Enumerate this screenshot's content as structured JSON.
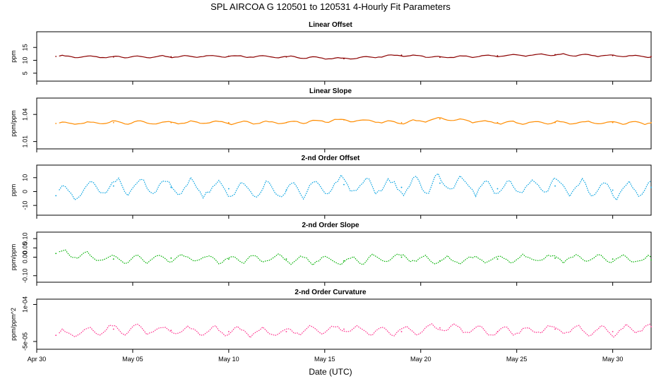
{
  "title": "SPL   AIRCOA G   120501 to 120531   4-Hourly Fit Parameters",
  "xlabel": "Date (UTC)",
  "x_ticks": [
    "Apr 30",
    "May 05",
    "May 10",
    "May 15",
    "May 20",
    "May 25",
    "May 30"
  ],
  "colors": {
    "linear_offset": "#8b0000",
    "linear_slope": "#ff8c00",
    "second_offset": "#00a0e0",
    "second_slope": "#00b000",
    "second_curvature": "#ff2a8a"
  },
  "chart_data": [
    {
      "type": "line",
      "title": "Linear Offset",
      "ylabel": "ppm",
      "y_ticks": [
        "5",
        "10",
        "15"
      ],
      "ylim": [
        3,
        20
      ],
      "xlim": [
        "2012-04-30",
        "2012-06-01"
      ],
      "series": [
        {
          "x": [
            "2012-05-01",
            "2012-05-04",
            "2012-05-07",
            "2012-05-10",
            "2012-05-13",
            "2012-05-16",
            "2012-05-19",
            "2012-05-21",
            "2012-05-24",
            "2012-05-27",
            "2012-05-30",
            "2012-06-01"
          ],
          "values": [
            11.5,
            11.3,
            11.4,
            11.6,
            11.3,
            10.6,
            12.0,
            11.2,
            11.8,
            12.2,
            11.8,
            11.5
          ]
        }
      ]
    },
    {
      "type": "line",
      "title": "Linear Slope",
      "ylabel": "ppm/ppm",
      "y_ticks": [
        "1.01",
        "1.04"
      ],
      "ylim": [
        1.005,
        1.055
      ],
      "xlim": [
        "2012-04-30",
        "2012-06-01"
      ],
      "series": [
        {
          "x": [
            "2012-05-01",
            "2012-05-04",
            "2012-05-07",
            "2012-05-10",
            "2012-05-13",
            "2012-05-16",
            "2012-05-19",
            "2012-05-21",
            "2012-05-24",
            "2012-05-27",
            "2012-05-30",
            "2012-06-01"
          ],
          "values": [
            1.03,
            1.031,
            1.031,
            1.031,
            1.031,
            1.034,
            1.031,
            1.035,
            1.031,
            1.031,
            1.031,
            1.031
          ]
        }
      ]
    },
    {
      "type": "line",
      "title": "2-nd Order Offset",
      "ylabel": "ppm",
      "y_ticks": [
        "-10",
        "0",
        "10"
      ],
      "ylim": [
        -15,
        17
      ],
      "xlim": [
        "2012-04-30",
        "2012-06-01"
      ],
      "series": [
        {
          "x": [
            "2012-05-01",
            "2012-05-04",
            "2012-05-07",
            "2012-05-10",
            "2012-05-13",
            "2012-05-16",
            "2012-05-19",
            "2012-05-21",
            "2012-05-24",
            "2012-05-27",
            "2012-05-30",
            "2012-06-01"
          ],
          "values": [
            -3,
            4,
            3,
            2,
            1,
            5,
            3,
            6,
            2,
            4,
            1,
            3
          ]
        }
      ]
    },
    {
      "type": "line",
      "title": "2-nd Order Slope",
      "ylabel": "ppm/ppm",
      "y_ticks": [
        "-0.10",
        "0.00",
        "0.05",
        "0.10"
      ],
      "ylim": [
        -0.12,
        0.12
      ],
      "xlim": [
        "2012-04-30",
        "2012-06-01"
      ],
      "series": [
        {
          "x": [
            "2012-05-01",
            "2012-05-04",
            "2012-05-07",
            "2012-05-10",
            "2012-05-13",
            "2012-05-16",
            "2012-05-19",
            "2012-05-21",
            "2012-05-24",
            "2012-05-27",
            "2012-05-30",
            "2012-06-01"
          ],
          "values": [
            0.02,
            -0.01,
            -0.005,
            -0.01,
            -0.01,
            -0.02,
            0.0,
            -0.02,
            -0.01,
            -0.005,
            -0.01,
            -0.015
          ]
        }
      ]
    },
    {
      "type": "line",
      "title": "2-nd Order Curvature",
      "ylabel": "ppm/ppm^2",
      "y_ticks": [
        "-5e-05",
        "1e-04"
      ],
      "ylim": [
        -7e-05,
        0.00011
      ],
      "xlim": [
        "2012-04-30",
        "2012-06-01"
      ],
      "series": [
        {
          "x": [
            "2012-05-01",
            "2012-05-04",
            "2012-05-07",
            "2012-05-10",
            "2012-05-13",
            "2012-05-16",
            "2012-05-19",
            "2012-05-21",
            "2012-05-24",
            "2012-05-27",
            "2012-05-30",
            "2012-06-01"
          ],
          "values": [
            -2.5e-05,
            0.0,
            -5e-06,
            -1e-05,
            -1e-05,
            0.0,
            -1e-05,
            5e-06,
            -1e-05,
            0.0,
            -1e-05,
            1e-05
          ]
        }
      ]
    }
  ]
}
